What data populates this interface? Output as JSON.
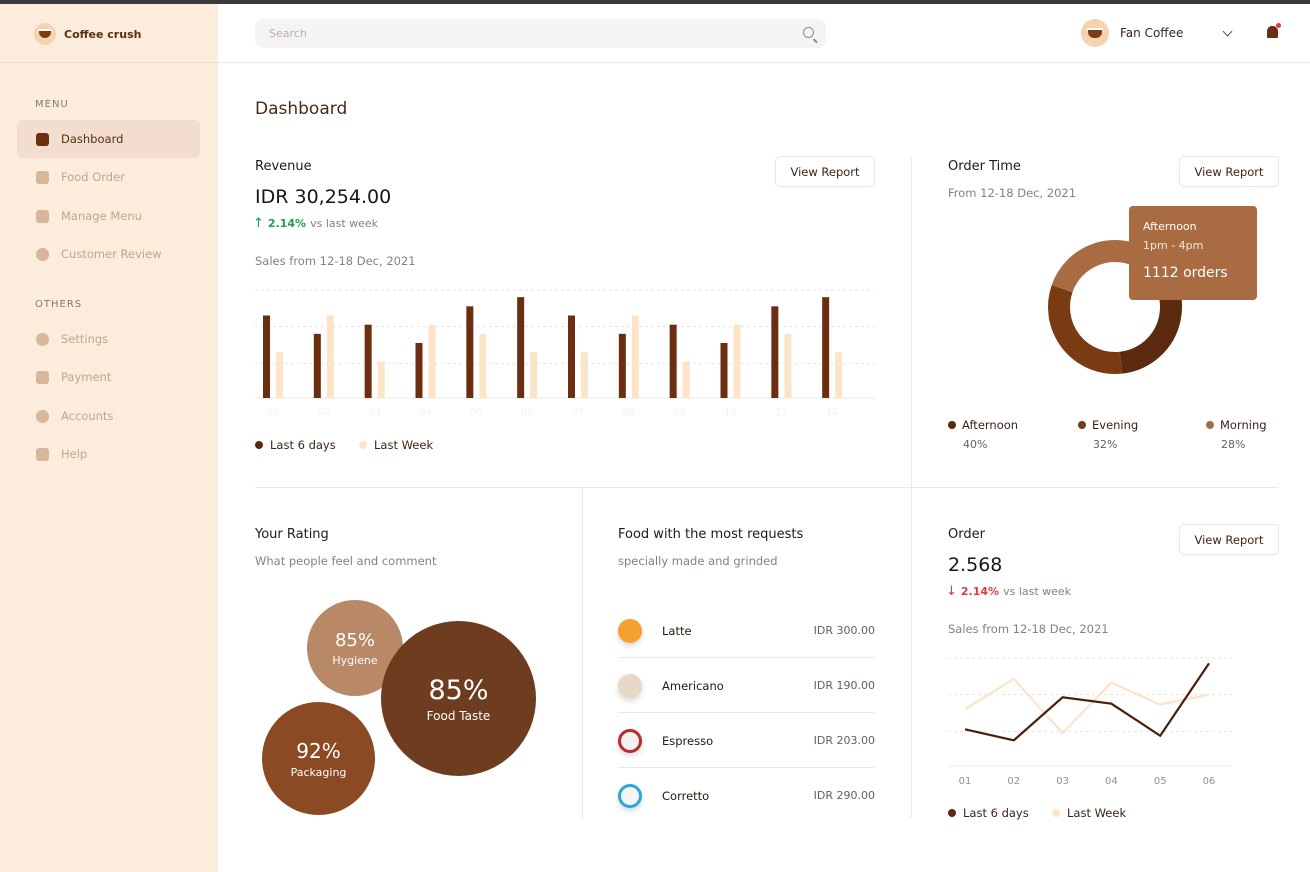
{
  "brand": {
    "name": "Coffee crush"
  },
  "sidebar": {
    "menu_label": "MENU",
    "menu_items": [
      {
        "label": "Dashboard",
        "active": true
      },
      {
        "label": "Food Order"
      },
      {
        "label": "Manage Menu"
      },
      {
        "label": "Customer Review"
      }
    ],
    "others_label": "OTHERS",
    "other_items": [
      {
        "label": "Settings"
      },
      {
        "label": "Payment"
      },
      {
        "label": "Accounts"
      },
      {
        "label": "Help"
      }
    ]
  },
  "header": {
    "search_placeholder": "Search",
    "user_name": "Fan Coffee"
  },
  "page": {
    "title": "Dashboard"
  },
  "revenue": {
    "title": "Revenue",
    "amount": "IDR 30,254.00",
    "delta_pct": "2.14%",
    "delta_text": "vs last week",
    "period": "Sales from 12-18 Dec, 2021",
    "button": "View Report"
  },
  "order_time": {
    "title": "Order Time",
    "period": "From 12-18 Dec, 2021",
    "button": "View Report",
    "tooltip": {
      "label": "Afternoon",
      "time": "1pm - 4pm",
      "orders": "1112 orders"
    },
    "legend": [
      {
        "name": "Afternoon",
        "value": "40%",
        "color": "#5c2a0e"
      },
      {
        "name": "Evening",
        "value": "32%",
        "color": "#7a3a12"
      },
      {
        "name": "Morning",
        "value": "28%",
        "color": "#a96b42"
      }
    ]
  },
  "rating": {
    "title": "Your Rating",
    "subtitle": "What people feel and comment",
    "bubbles": [
      {
        "value": "85%",
        "label": "Hygiene"
      },
      {
        "value": "85%",
        "label": "Food Taste"
      },
      {
        "value": "92%",
        "label": "Packaging"
      }
    ]
  },
  "food": {
    "title": "Food with the most requests",
    "subtitle": "specially made and grinded",
    "items": [
      {
        "name": "Latte",
        "price": "IDR 300.00"
      },
      {
        "name": "Americano",
        "price": "IDR 190.00"
      },
      {
        "name": "Espresso",
        "price": "IDR 203.00"
      },
      {
        "name": "Corretto",
        "price": "IDR 290.00"
      }
    ]
  },
  "order": {
    "title": "Order",
    "amount": "2.568",
    "delta_pct": "2.14%",
    "delta_text": "vs last week",
    "period": "Sales from 12-18 Dec, 2021",
    "button": "View Report"
  },
  "colors": {
    "dark": "#6b2e10",
    "light": "#fde4c6",
    "accent": "#a96b42"
  },
  "chart_data": [
    {
      "type": "bar",
      "categories": [
        "01",
        "02",
        "03",
        "04",
        "05",
        "06",
        "07",
        "08",
        "09",
        "10",
        "11",
        "12"
      ],
      "series": [
        {
          "name": "Last 6 days",
          "values": [
            90,
            70,
            80,
            60,
            100,
            110,
            90,
            70,
            80,
            60,
            100,
            110
          ]
        },
        {
          "name": "Last Week",
          "values": [
            50,
            90,
            40,
            80,
            70,
            50,
            50,
            90,
            40,
            80,
            70,
            50
          ]
        }
      ],
      "ylim": [
        0,
        120
      ],
      "grid": true,
      "legend": "bottom-left"
    },
    {
      "type": "pie",
      "labels": [
        "Afternoon",
        "Evening",
        "Morning"
      ],
      "values": [
        40,
        32,
        28
      ]
    },
    {
      "type": "line",
      "x": [
        "01",
        "02",
        "03",
        "04",
        "05",
        "06"
      ],
      "series": [
        {
          "name": "Last 6 days",
          "values": [
            40,
            28,
            75,
            68,
            33,
            112
          ]
        },
        {
          "name": "Last Week",
          "values": [
            62,
            95,
            36,
            91,
            67,
            78
          ]
        }
      ],
      "ylim": [
        0,
        120
      ],
      "grid": true,
      "legend": "bottom-left"
    }
  ]
}
